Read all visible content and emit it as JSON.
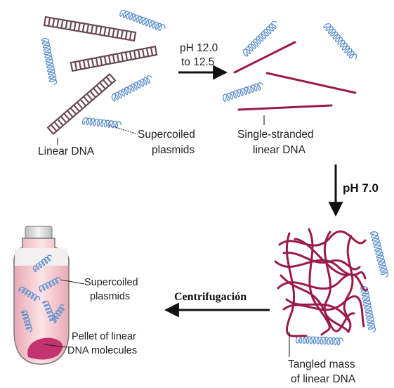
{
  "labels": {
    "linear_dna": "Linear DNA",
    "supercoiled_1": "Supercoiled",
    "supercoiled_2": "plasmids",
    "ph_range_1": "pH 12.0",
    "ph_range_2": "to 12.5",
    "single_stranded_1": "Single-stranded",
    "single_stranded_2": "linear DNA",
    "ph_neutral": "pH 7.0",
    "centrifugation": "Centrifugación",
    "tube_supercoiled_1": "Supercoiled",
    "tube_supercoiled_2": "plasmids",
    "pellet_1": "Pellet of linear",
    "pellet_2": "DNA molecules",
    "tangled_1": "Tangled mass",
    "tangled_2": "of linear DNA"
  },
  "colors": {
    "dna_strand": "#9b1a4b",
    "ladder_frame": "#6b4a55",
    "plasmid": "#5b8fd0",
    "tube_fill": "#f6cfd5",
    "pellet": "#c2336f",
    "arrow": "#111111"
  },
  "icons": {
    "arrow_right": "arrow-right-icon",
    "arrow_down": "arrow-down-icon",
    "arrow_left": "arrow-left-icon"
  }
}
